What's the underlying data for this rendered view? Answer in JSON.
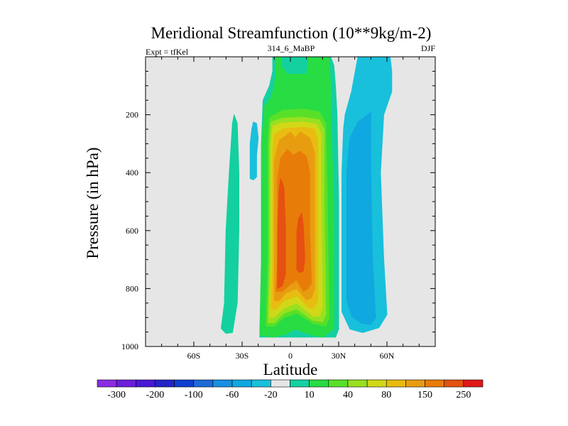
{
  "chart_data": {
    "type": "filled-contour",
    "title": "Meridional Streamfunction (10**9kg/m-2)",
    "subtitle_left": "Expt = tfKel",
    "subtitle_center": "314_6_MaBP",
    "subtitle_right": "DJF",
    "xlabel": "Latitude",
    "ylabel": "Pressure (in hPa)",
    "x_ticks": [
      {
        "value": -60,
        "label": "60S"
      },
      {
        "value": -30,
        "label": "30S"
      },
      {
        "value": 0,
        "label": "0"
      },
      {
        "value": 30,
        "label": "30N"
      },
      {
        "value": 60,
        "label": "60N"
      }
    ],
    "y_ticks": [
      {
        "value": 200,
        "label": "200"
      },
      {
        "value": 400,
        "label": "400"
      },
      {
        "value": 600,
        "label": "600"
      },
      {
        "value": 800,
        "label": "800"
      },
      {
        "value": 1000,
        "label": "1000"
      }
    ],
    "xlim": [
      -90,
      90
    ],
    "ylim": [
      1000,
      0
    ],
    "background_color": "#e6e6e6",
    "colorbar": {
      "colors": [
        "#8b2be2",
        "#6a1fd9",
        "#4a18d4",
        "#2424c8",
        "#1040d0",
        "#1c6ad8",
        "#1890e0",
        "#10a8e0",
        "#18c0dc",
        "#e6e6e6",
        "#14d0a0",
        "#28dc44",
        "#58e028",
        "#98e020",
        "#d0d818",
        "#e8bc10",
        "#e89c10",
        "#e87c08",
        "#e65010",
        "#e01818"
      ],
      "labels": [
        "-300",
        "-200",
        "-100",
        "-60",
        "-20",
        "10",
        "40",
        "80",
        "150",
        "250"
      ]
    },
    "regions": [
      {
        "level": 10,
        "color": "#14d0a0",
        "points": [
          [
            -43,
            938
          ],
          [
            -41,
            850
          ],
          [
            -40,
            600
          ],
          [
            -38,
            400
          ],
          [
            -36,
            230
          ],
          [
            -35,
            200
          ],
          [
            -33,
            230
          ],
          [
            -32,
            400
          ],
          [
            -32,
            600
          ],
          [
            -33,
            850
          ],
          [
            -36,
            952
          ],
          [
            -40,
            955
          ]
        ]
      },
      {
        "level": -20,
        "color": "#18c0dc",
        "points": [
          [
            -25,
            420
          ],
          [
            -25,
            300
          ],
          [
            -24,
            250
          ],
          [
            -23,
            225
          ],
          [
            -21,
            230
          ],
          [
            -20,
            280
          ],
          [
            -21,
            340
          ],
          [
            -21,
            415
          ],
          [
            -23,
            425
          ]
        ]
      },
      {
        "level": 10,
        "color": "#14d0a0",
        "points": [
          [
            -19,
            968
          ],
          [
            -18,
            700
          ],
          [
            -18,
            300
          ],
          [
            -17,
            150
          ],
          [
            -13,
            100
          ],
          [
            -11,
            50
          ],
          [
            -11,
            0
          ],
          [
            25,
            0
          ],
          [
            27,
            30
          ],
          [
            28,
            100
          ],
          [
            29,
            200
          ],
          [
            30,
            500
          ],
          [
            30,
            940
          ],
          [
            28,
            968
          ]
        ]
      },
      {
        "level": 40,
        "color": "#28dc44",
        "points": [
          [
            -19,
            960
          ],
          [
            -18,
            700
          ],
          [
            -18,
            300
          ],
          [
            -16,
            170
          ],
          [
            -12,
            140
          ],
          [
            -10,
            100
          ],
          [
            -9,
            60
          ],
          [
            -9,
            0
          ],
          [
            -6,
            0
          ],
          [
            -6,
            30
          ],
          [
            -2,
            60
          ],
          [
            10,
            60
          ],
          [
            11,
            30
          ],
          [
            11,
            0
          ],
          [
            24,
            0
          ],
          [
            25,
            100
          ],
          [
            25,
            200
          ],
          [
            27,
            500
          ],
          [
            27,
            940
          ],
          [
            20,
            968
          ],
          [
            12,
            958
          ],
          [
            3,
            940
          ],
          [
            -3,
            958
          ],
          [
            -11,
            968
          ]
        ]
      },
      {
        "level": 80,
        "color": "#58e028",
        "points": [
          [
            -15,
            930
          ],
          [
            -14,
            700
          ],
          [
            -14,
            300
          ],
          [
            -13,
            210
          ],
          [
            -5,
            185
          ],
          [
            8,
            180
          ],
          [
            18,
            190
          ],
          [
            22,
            230
          ],
          [
            23,
            500
          ],
          [
            24,
            900
          ],
          [
            22,
            930
          ],
          [
            14,
            920
          ],
          [
            4,
            885
          ],
          [
            -4,
            900
          ],
          [
            -10,
            930
          ]
        ]
      },
      {
        "level": 100,
        "color": "#98e020",
        "points": [
          [
            -14,
            918
          ],
          [
            -13,
            700
          ],
          [
            -13,
            300
          ],
          [
            -12,
            225
          ],
          [
            -5,
            212
          ],
          [
            8,
            208
          ],
          [
            18,
            218
          ],
          [
            21,
            250
          ],
          [
            21,
            500
          ],
          [
            22,
            890
          ],
          [
            20,
            915
          ],
          [
            14,
            910
          ],
          [
            4,
            870
          ],
          [
            -4,
            885
          ],
          [
            -10,
            918
          ]
        ]
      },
      {
        "level": 120,
        "color": "#d0d818",
        "points": [
          [
            -13,
            898
          ],
          [
            -12,
            700
          ],
          [
            -12,
            300
          ],
          [
            -11,
            240
          ],
          [
            -5,
            228
          ],
          [
            8,
            225
          ],
          [
            16,
            232
          ],
          [
            19,
            265
          ],
          [
            19,
            500
          ],
          [
            20,
            868
          ],
          [
            18,
            895
          ],
          [
            14,
            895
          ],
          [
            4,
            850
          ],
          [
            -4,
            868
          ],
          [
            -10,
            898
          ]
        ]
      },
      {
        "level": 150,
        "color": "#e8bc10",
        "points": [
          [
            -12,
            870
          ],
          [
            -11,
            700
          ],
          [
            -11,
            330
          ],
          [
            -10,
            268
          ],
          [
            -4,
            248
          ],
          [
            8,
            243
          ],
          [
            15,
            250
          ],
          [
            17,
            290
          ],
          [
            17,
            500
          ],
          [
            17,
            838
          ],
          [
            15,
            865
          ],
          [
            12,
            868
          ],
          [
            4,
            825
          ],
          [
            -4,
            842
          ],
          [
            -9,
            870
          ]
        ]
      },
      {
        "level": 200,
        "color": "#e89c10",
        "points": [
          [
            -10,
            842
          ],
          [
            -10,
            700
          ],
          [
            -10,
            360
          ],
          [
            -7,
            290
          ],
          [
            0,
            260
          ],
          [
            3,
            280
          ],
          [
            6,
            260
          ],
          [
            12,
            280
          ],
          [
            15,
            330
          ],
          [
            15,
            500
          ],
          [
            15,
            800
          ],
          [
            13,
            832
          ],
          [
            10,
            840
          ],
          [
            4,
            800
          ],
          [
            -3,
            816
          ],
          [
            -7,
            842
          ]
        ]
      },
      {
        "level": 250,
        "color": "#e87c08",
        "points": [
          [
            -9,
            810
          ],
          [
            -8,
            700
          ],
          [
            -8,
            420
          ],
          [
            -6,
            350
          ],
          [
            -2,
            320
          ],
          [
            2,
            340
          ],
          [
            6,
            325
          ],
          [
            10,
            345
          ],
          [
            12,
            400
          ],
          [
            12,
            600
          ],
          [
            13,
            780
          ],
          [
            11,
            800
          ],
          [
            8,
            810
          ],
          [
            4,
            770
          ],
          [
            0,
            785
          ],
          [
            -5,
            810
          ]
        ]
      },
      {
        "level": 300,
        "color": "#e65010",
        "points": [
          [
            -8,
            800
          ],
          [
            -8,
            600
          ],
          [
            -7,
            460
          ],
          [
            -6,
            420
          ],
          [
            -4,
            450
          ],
          [
            -3,
            600
          ],
          [
            -3,
            750
          ],
          [
            -5,
            790
          ]
        ]
      },
      {
        "level": 300,
        "color": "#e65010",
        "points": [
          [
            4,
            735
          ],
          [
            4,
            600
          ],
          [
            5,
            560
          ],
          [
            7,
            540
          ],
          [
            8,
            580
          ],
          [
            9,
            700
          ],
          [
            8,
            740
          ],
          [
            6,
            745
          ]
        ]
      },
      {
        "level": -20,
        "color": "#18c0dc",
        "points": [
          [
            32,
            880
          ],
          [
            32,
            700
          ],
          [
            32,
            400
          ],
          [
            33,
            250
          ],
          [
            34,
            200
          ],
          [
            38,
            120
          ],
          [
            42,
            0
          ],
          [
            62,
            0
          ],
          [
            63,
            50
          ],
          [
            63,
            120
          ],
          [
            58,
            200
          ],
          [
            56,
            400
          ],
          [
            58,
            700
          ],
          [
            60,
            890
          ],
          [
            55,
            935
          ],
          [
            45,
            952
          ],
          [
            37,
            940
          ]
        ]
      },
      {
        "level": -40,
        "color": "#10a8e0",
        "points": [
          [
            35,
            840
          ],
          [
            35,
            600
          ],
          [
            35,
            400
          ],
          [
            37,
            280
          ],
          [
            42,
            225
          ],
          [
            48,
            200
          ],
          [
            50,
            190
          ],
          [
            50,
            400
          ],
          [
            51,
            700
          ],
          [
            53,
            900
          ],
          [
            50,
            925
          ],
          [
            44,
            920
          ],
          [
            38,
            895
          ]
        ]
      }
    ]
  }
}
